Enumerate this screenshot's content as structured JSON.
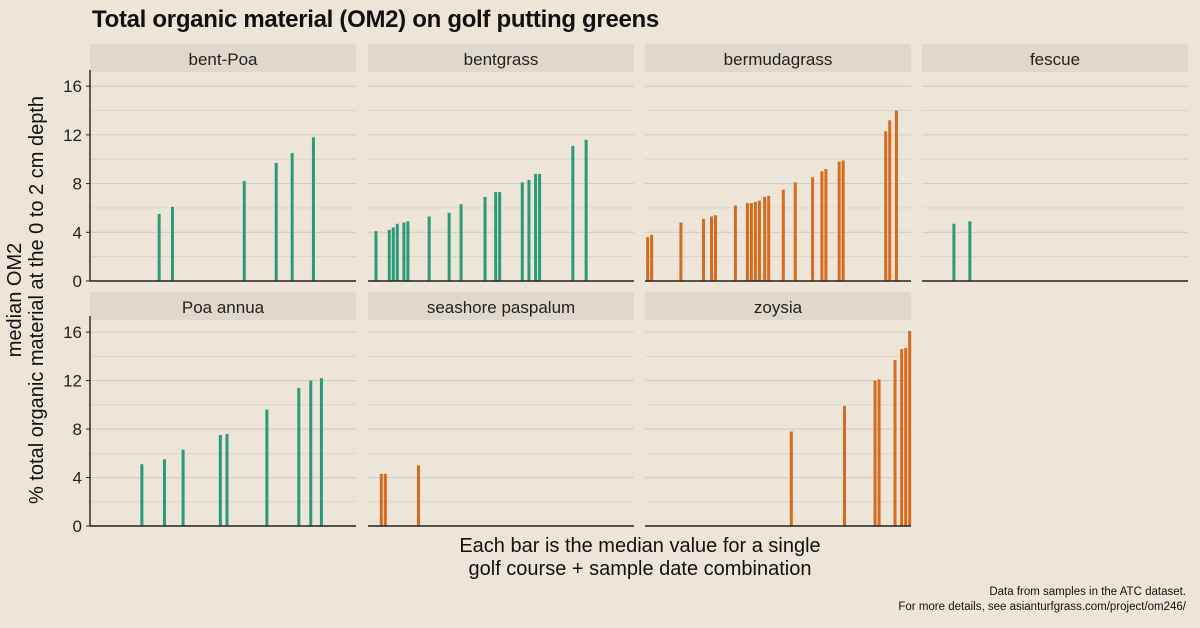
{
  "chart_data": {
    "type": "bar",
    "title": "Total organic material (OM2) on golf putting greens",
    "ylabel": [
      "median OM2",
      "% total organic material at the 0 to 2 cm depth"
    ],
    "xlabel": [
      "Each bar is the median value for a single",
      "golf course + sample date combination"
    ],
    "caption": [
      "Data from samples in the ATC dataset.",
      "For more details, see asianturfgrass.com/project/om246/"
    ],
    "ylim": [
      0,
      17
    ],
    "yticks": [
      0,
      4,
      8,
      12,
      16
    ],
    "grid": true,
    "colors": {
      "cool_season": "#2a9a78",
      "warm_season": "#d86a1e",
      "strip_bg": "#e0d9cb",
      "grid": "#cfcccb",
      "axis": "#222222"
    },
    "panels": [
      {
        "name": "bent-Poa",
        "color": "cool_season",
        "bars": [
          {
            "x": 0.26,
            "v": 5.5
          },
          {
            "x": 0.31,
            "v": 6.1
          },
          {
            "x": 0.58,
            "v": 8.2
          },
          {
            "x": 0.7,
            "v": 9.7
          },
          {
            "x": 0.76,
            "v": 10.5
          },
          {
            "x": 0.84,
            "v": 11.8
          }
        ]
      },
      {
        "name": "bentgrass",
        "color": "cool_season",
        "bars": [
          {
            "x": 0.03,
            "v": 4.1
          },
          {
            "x": 0.08,
            "v": 4.2
          },
          {
            "x": 0.095,
            "v": 4.4
          },
          {
            "x": 0.11,
            "v": 4.7
          },
          {
            "x": 0.135,
            "v": 4.8
          },
          {
            "x": 0.15,
            "v": 4.9
          },
          {
            "x": 0.23,
            "v": 5.3
          },
          {
            "x": 0.305,
            "v": 5.6
          },
          {
            "x": 0.35,
            "v": 6.3
          },
          {
            "x": 0.44,
            "v": 6.9
          },
          {
            "x": 0.48,
            "v": 7.3
          },
          {
            "x": 0.495,
            "v": 7.3
          },
          {
            "x": 0.58,
            "v": 8.1
          },
          {
            "x": 0.605,
            "v": 8.3
          },
          {
            "x": 0.63,
            "v": 8.8
          },
          {
            "x": 0.645,
            "v": 8.8
          },
          {
            "x": 0.77,
            "v": 11.1
          },
          {
            "x": 0.82,
            "v": 11.6
          }
        ]
      },
      {
        "name": "bermudagrass",
        "color": "warm_season",
        "bars": [
          {
            "x": 0.01,
            "v": 3.6
          },
          {
            "x": 0.025,
            "v": 3.8
          },
          {
            "x": 0.135,
            "v": 4.8
          },
          {
            "x": 0.22,
            "v": 5.1
          },
          {
            "x": 0.25,
            "v": 5.3
          },
          {
            "x": 0.265,
            "v": 5.4
          },
          {
            "x": 0.34,
            "v": 6.2
          },
          {
            "x": 0.385,
            "v": 6.4
          },
          {
            "x": 0.4,
            "v": 6.4
          },
          {
            "x": 0.415,
            "v": 6.5
          },
          {
            "x": 0.43,
            "v": 6.6
          },
          {
            "x": 0.45,
            "v": 6.9
          },
          {
            "x": 0.465,
            "v": 7.0
          },
          {
            "x": 0.52,
            "v": 7.5
          },
          {
            "x": 0.565,
            "v": 8.1
          },
          {
            "x": 0.63,
            "v": 8.5
          },
          {
            "x": 0.665,
            "v": 9.0
          },
          {
            "x": 0.68,
            "v": 9.2
          },
          {
            "x": 0.73,
            "v": 9.8
          },
          {
            "x": 0.745,
            "v": 9.9
          },
          {
            "x": 0.905,
            "v": 12.3
          },
          {
            "x": 0.92,
            "v": 13.2
          },
          {
            "x": 0.945,
            "v": 14.0
          }
        ]
      },
      {
        "name": "fescue",
        "color": "cool_season",
        "bars": [
          {
            "x": 0.12,
            "v": 4.7
          },
          {
            "x": 0.18,
            "v": 4.9
          }
        ]
      },
      {
        "name": "Poa annua",
        "color": "cool_season",
        "bars": [
          {
            "x": 0.195,
            "v": 5.1
          },
          {
            "x": 0.28,
            "v": 5.5
          },
          {
            "x": 0.35,
            "v": 6.3
          },
          {
            "x": 0.49,
            "v": 7.5
          },
          {
            "x": 0.515,
            "v": 7.6
          },
          {
            "x": 0.665,
            "v": 9.6
          },
          {
            "x": 0.785,
            "v": 11.4
          },
          {
            "x": 0.83,
            "v": 12.0
          },
          {
            "x": 0.87,
            "v": 12.2
          }
        ]
      },
      {
        "name": "seashore paspalum",
        "color": "warm_season",
        "bars": [
          {
            "x": 0.05,
            "v": 4.3
          },
          {
            "x": 0.065,
            "v": 4.3
          },
          {
            "x": 0.19,
            "v": 5.0
          }
        ]
      },
      {
        "name": "zoysia",
        "color": "warm_season",
        "bars": [
          {
            "x": 0.55,
            "v": 7.8
          },
          {
            "x": 0.75,
            "v": 9.9
          },
          {
            "x": 0.865,
            "v": 12.0
          },
          {
            "x": 0.88,
            "v": 12.1
          },
          {
            "x": 0.94,
            "v": 13.7
          },
          {
            "x": 0.965,
            "v": 14.6
          },
          {
            "x": 0.98,
            "v": 14.7
          },
          {
            "x": 0.995,
            "v": 16.1
          }
        ]
      }
    ]
  }
}
